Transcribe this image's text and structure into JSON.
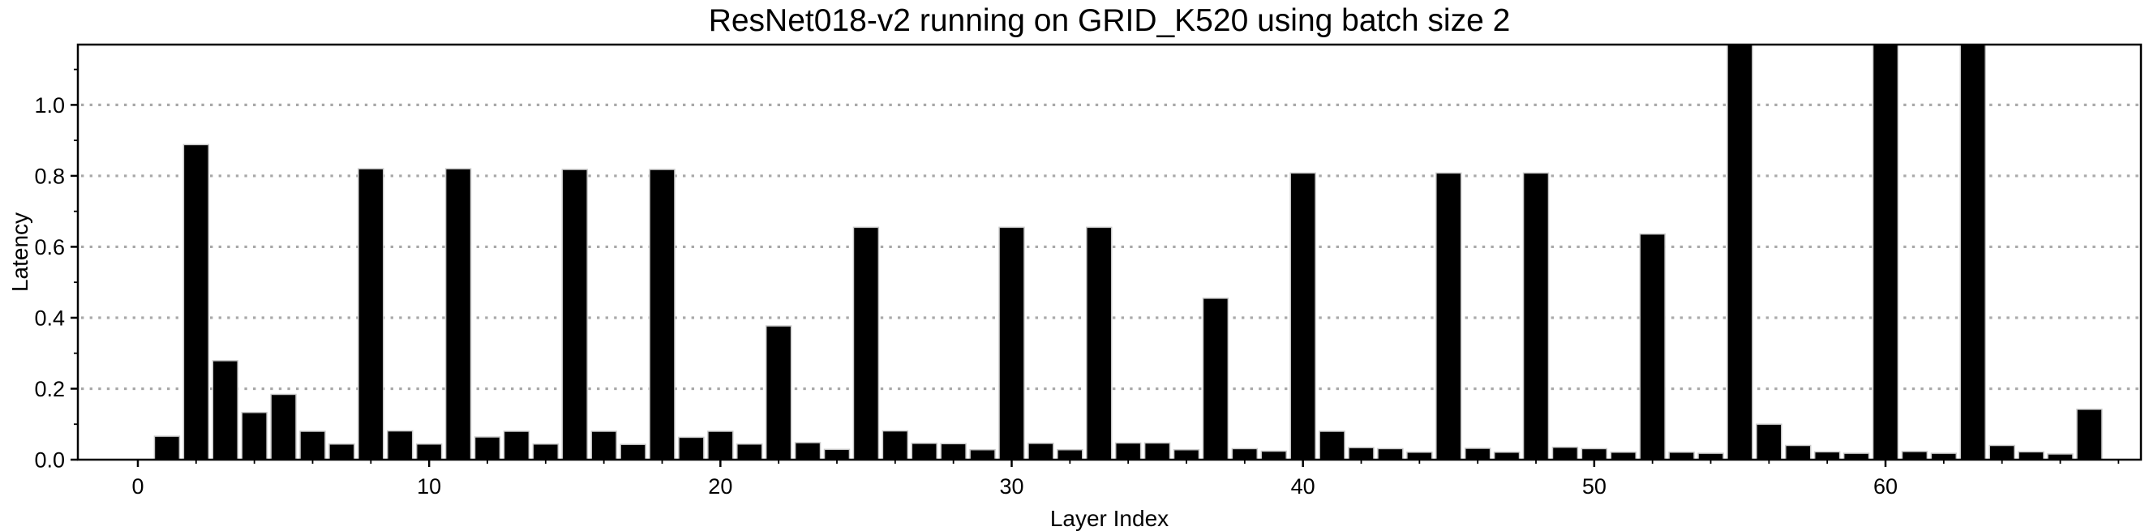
{
  "window": {
    "background": "#ffffff"
  },
  "chart_data": {
    "type": "bar",
    "title": "ResNet018-v2 running on GRID_K520 using batch size 2",
    "xlabel": "Layer Index",
    "ylabel": "Latency",
    "legend": null,
    "grid": "horizontal-dotted",
    "grid_color": "#a9a9a9",
    "bar_color": "#000000",
    "bar_edge_color": "#c9c9c9",
    "axis_color": "#000000",
    "start_index": 1,
    "values": [
      0.066,
      0.888,
      0.279,
      0.133,
      0.184,
      0.08,
      0.044,
      0.82,
      0.081,
      0.044,
      0.82,
      0.064,
      0.08,
      0.044,
      0.818,
      0.08,
      0.043,
      0.818,
      0.063,
      0.08,
      0.044,
      0.377,
      0.048,
      0.029,
      0.655,
      0.081,
      0.046,
      0.045,
      0.028,
      0.655,
      0.046,
      0.028,
      0.655,
      0.047,
      0.047,
      0.028,
      0.455,
      0.031,
      0.024,
      0.808,
      0.08,
      0.034,
      0.031,
      0.021,
      0.808,
      0.032,
      0.021,
      0.808,
      0.035,
      0.031,
      0.021,
      0.636,
      0.021,
      0.018,
      1.17,
      0.1,
      0.04,
      0.022,
      0.018,
      1.17,
      0.023,
      0.018,
      1.17,
      0.04,
      0.022,
      0.016,
      0.142
    ],
    "clipped_bar_indices": [
      55,
      60,
      63
    ],
    "note": "Bars at layer indices 55, 60 and 63 exceed the visible y range and are clipped at the top of the axes.",
    "xlim": [
      -2.06,
      68.77
    ],
    "ylim": [
      0,
      1.17
    ],
    "x_ticks": [
      0,
      10,
      20,
      30,
      40,
      50,
      60
    ],
    "x_tick_labels": [
      "0",
      "10",
      "20",
      "30",
      "40",
      "50",
      "60"
    ],
    "x_minor_tick_step": 2,
    "y_ticks": [
      0.0,
      0.2,
      0.4,
      0.6,
      0.8,
      1.0
    ],
    "y_tick_labels": [
      "0.0",
      "0.2",
      "0.4",
      "0.6",
      "0.8",
      "1.0"
    ],
    "y_minor_tick_step": 0.1,
    "gridline_values": [
      0.2,
      0.4,
      0.6,
      0.8,
      1.0
    ]
  }
}
